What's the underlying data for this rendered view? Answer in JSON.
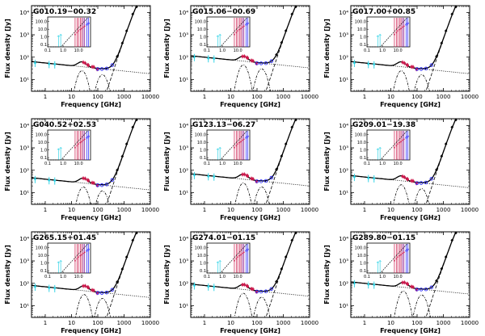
{
  "figure": {
    "xlabel": "Frequency [GHz]",
    "ylabel": "Flux density [Jy]",
    "x_ticks": [
      "1",
      "10",
      "100",
      "1000",
      "10000"
    ],
    "inset_x_ticks": [
      "0.1",
      "1.0",
      "10.0"
    ],
    "inset_y_ticks": [
      "100.0",
      "10.0",
      "1.0",
      "0.1"
    ],
    "colors": {
      "model": "#000000",
      "low_freq": "#33d4e6",
      "mid_freq": "#cc1a4d",
      "planck": "#800080",
      "high_freq": "#1a1aff"
    }
  },
  "chart_data": [
    {
      "type": "scatter",
      "title": "G010.19−00.32",
      "xlabel": "Frequency [GHz]",
      "ylabel": "Flux density [Jy]",
      "xlim": [
        0.3,
        10000
      ],
      "ylim": [
        3,
        20000
      ],
      "x_scale": "log",
      "y_scale": "log",
      "y_ticks": [
        "10¹",
        "10²",
        "10³",
        "10⁴"
      ],
      "peak_freq_ghz": 2500,
      "peak_flux_jy": 12000,
      "ff_level_jy": 55,
      "ame_peak_ghz": 25
    },
    {
      "type": "scatter",
      "title": "G015.06−00.69",
      "xlabel": "Frequency [GHz]",
      "ylabel": "Flux density [Jy]",
      "xlim": [
        0.3,
        10000
      ],
      "ylim": [
        3,
        20000
      ],
      "x_scale": "log",
      "y_scale": "log",
      "y_ticks": [
        "10¹",
        "10²",
        "10³",
        "10⁴"
      ],
      "peak_freq_ghz": 2500,
      "peak_flux_jy": 12000,
      "ff_level_jy": 100,
      "ame_peak_ghz": 30
    },
    {
      "type": "scatter",
      "title": "G017.00+00.85",
      "xlabel": "Frequency [GHz]",
      "ylabel": "Flux density [Jy]",
      "xlim": [
        0.3,
        10000
      ],
      "ylim": [
        3,
        20000
      ],
      "x_scale": "log",
      "y_scale": "log",
      "y_ticks": [
        "10¹",
        "10²",
        "10³",
        "10⁴"
      ],
      "peak_freq_ghz": 2500,
      "peak_flux_jy": 12000,
      "ff_level_jy": 55,
      "ame_peak_ghz": 25
    },
    {
      "type": "scatter",
      "title": "G040.52+02.53",
      "xlabel": "Frequency [GHz]",
      "ylabel": "Flux density [Jy]",
      "xlim": [
        0.3,
        10000
      ],
      "ylim": [
        3,
        20000
      ],
      "x_scale": "log",
      "y_scale": "log",
      "y_ticks": [
        "10¹",
        "10²",
        "10³",
        "10⁴"
      ],
      "peak_freq_ghz": 2500,
      "peak_flux_jy": 12000,
      "ff_level_jy": 40,
      "ame_peak_ghz": 28
    },
    {
      "type": "scatter",
      "title": "G123.13−06.27",
      "xlabel": "Frequency [GHz]",
      "ylabel": "Flux density [Jy]",
      "xlim": [
        0.3,
        10000
      ],
      "ylim": [
        3,
        20000
      ],
      "x_scale": "log",
      "y_scale": "log",
      "y_ticks": [
        "10¹",
        "10²",
        "10³",
        "10⁴"
      ],
      "peak_freq_ghz": 2500,
      "peak_flux_jy": 12000,
      "ff_level_jy": 60,
      "ame_peak_ghz": 30
    },
    {
      "type": "scatter",
      "title": "G209.01−19.38",
      "xlabel": "Frequency [GHz]",
      "ylabel": "Flux density [Jy]",
      "xlim": [
        0.3,
        10000
      ],
      "ylim": [
        3,
        20000
      ],
      "x_scale": "log",
      "y_scale": "log",
      "y_ticks": [
        "10¹",
        "10²",
        "10³",
        "10⁴"
      ],
      "peak_freq_ghz": 2500,
      "peak_flux_jy": 12000,
      "ff_level_jy": 50,
      "ame_peak_ghz": 25
    },
    {
      "type": "scatter",
      "title": "G265.15+01.45",
      "xlabel": "Frequency [GHz]",
      "ylabel": "Flux density [Jy]",
      "xlim": [
        0.3,
        10000
      ],
      "ylim": [
        3,
        20000
      ],
      "x_scale": "log",
      "y_scale": "log",
      "y_ticks": [
        "10¹",
        "10²",
        "10³",
        "10⁴"
      ],
      "peak_freq_ghz": 2500,
      "peak_flux_jy": 12000,
      "ff_level_jy": 70,
      "ame_peak_ghz": 30
    },
    {
      "type": "scatter",
      "title": "G274.01−01.15",
      "xlabel": "Frequency [GHz]",
      "ylabel": "Flux density [Jy]",
      "xlim": [
        0.3,
        10000
      ],
      "ylim": [
        3,
        20000
      ],
      "x_scale": "log",
      "y_scale": "log",
      "y_ticks": [
        "10¹",
        "10²",
        "10³",
        "10⁴"
      ],
      "peak_freq_ghz": 2500,
      "peak_flux_jy": 12000,
      "ff_level_jy": 80,
      "ame_peak_ghz": 30
    },
    {
      "type": "scatter",
      "title": "G289.80−01.15",
      "xlabel": "Frequency [GHz]",
      "ylabel": "Flux density [Jy]",
      "xlim": [
        0.3,
        10000
      ],
      "ylim": [
        3,
        20000
      ],
      "x_scale": "log",
      "y_scale": "log",
      "y_ticks": [
        "10¹",
        "10²",
        "10³",
        "10⁴"
      ],
      "peak_freq_ghz": 2500,
      "peak_flux_jy": 12000,
      "ff_level_jy": 100,
      "ame_peak_ghz": 30
    }
  ]
}
